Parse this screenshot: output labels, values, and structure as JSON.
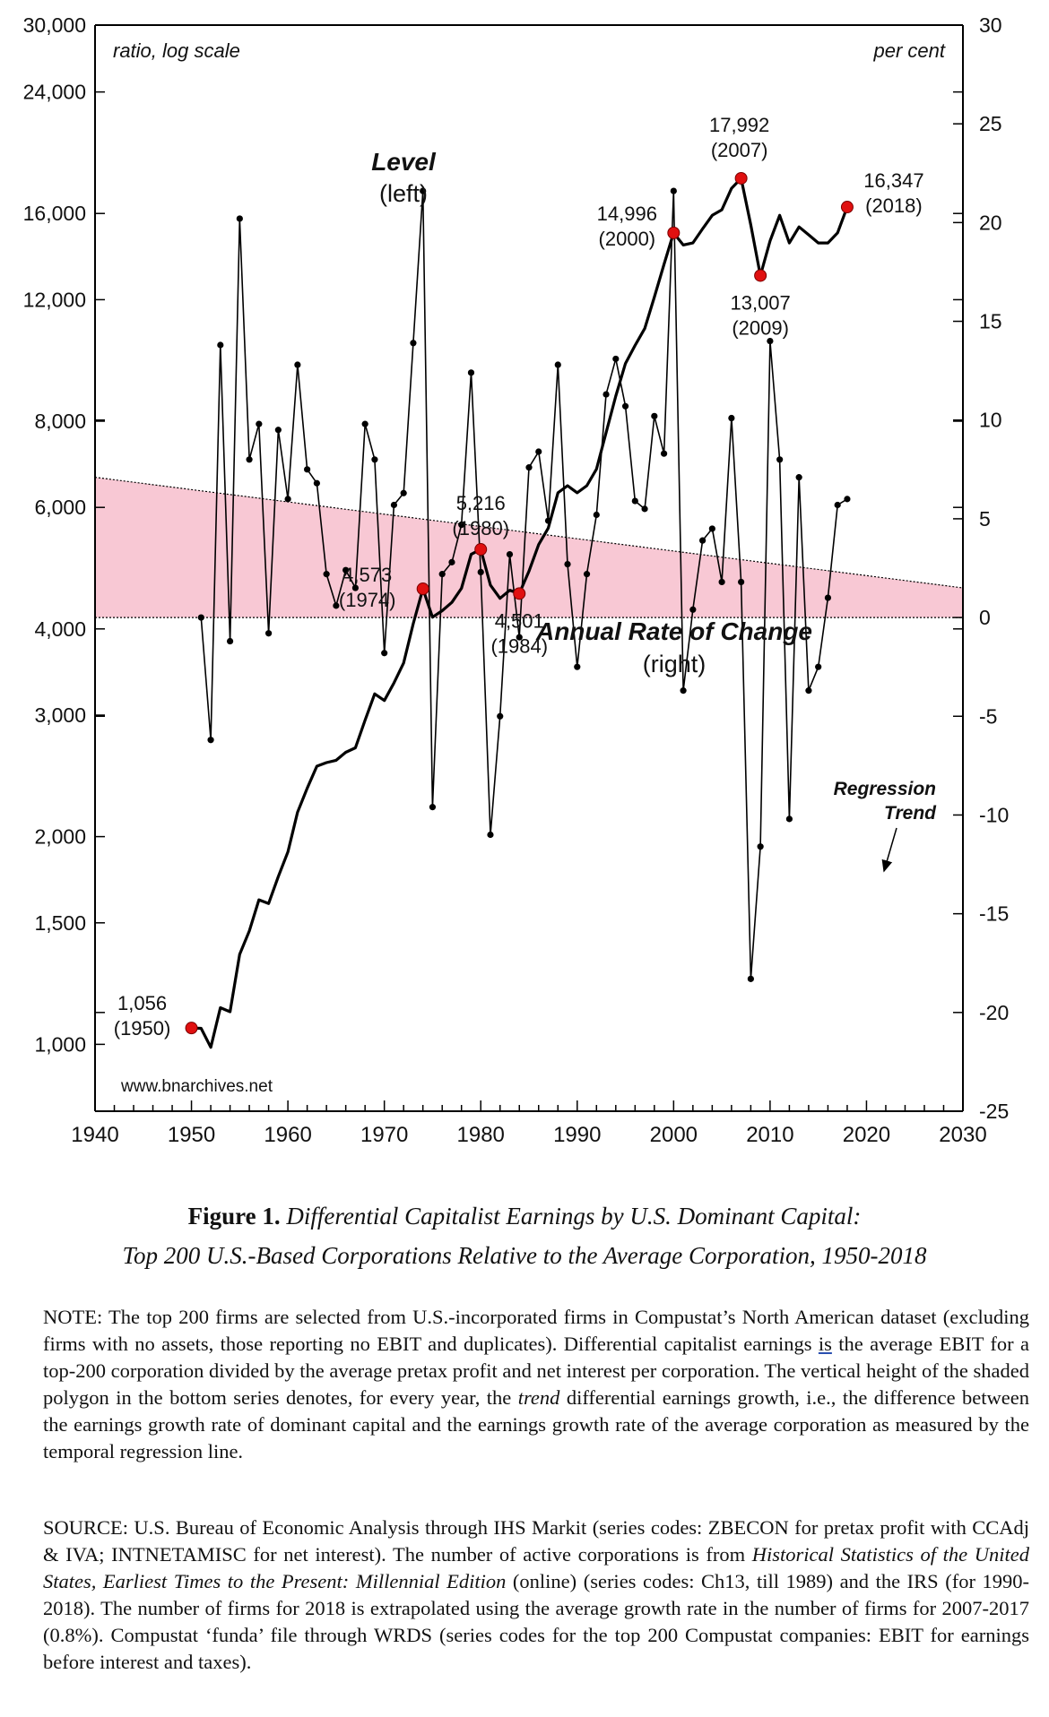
{
  "chart_data": {
    "type": "line",
    "x_ticks": [
      1940,
      1950,
      1960,
      1970,
      1980,
      1990,
      2000,
      2010,
      2020,
      2030
    ],
    "xlim": [
      1940,
      2030
    ],
    "level": {
      "label": "Level",
      "side_label": "(left)",
      "axis_note": "ratio, log scale",
      "scale": "log",
      "ylim": [
        800,
        30000
      ],
      "ticks": [
        1000,
        1500,
        2000,
        3000,
        4000,
        6000,
        8000,
        12000,
        16000,
        24000,
        30000
      ],
      "tick_labels": [
        "1,000",
        "1,500",
        "2,000",
        "3,000",
        "4,000",
        "6,000",
        "8,000",
        "12,000",
        "16,000",
        "24,000",
        "30,000"
      ],
      "x": [
        1950,
        1951,
        1952,
        1953,
        1954,
        1955,
        1956,
        1957,
        1958,
        1959,
        1960,
        1961,
        1962,
        1963,
        1964,
        1965,
        1966,
        1967,
        1968,
        1969,
        1970,
        1971,
        1972,
        1973,
        1974,
        1975,
        1976,
        1977,
        1978,
        1979,
        1980,
        1981,
        1982,
        1983,
        1984,
        1985,
        1986,
        1987,
        1988,
        1989,
        1990,
        1991,
        1992,
        1993,
        1994,
        1995,
        1996,
        1997,
        1998,
        1999,
        2000,
        2001,
        2002,
        2003,
        2004,
        2005,
        2006,
        2007,
        2008,
        2009,
        2010,
        2011,
        2012,
        2013,
        2014,
        2015,
        2016,
        2017,
        2018
      ],
      "y": [
        1056,
        1055,
        990,
        1130,
        1115,
        1350,
        1460,
        1620,
        1600,
        1750,
        1900,
        2170,
        2350,
        2530,
        2560,
        2580,
        2650,
        2690,
        2950,
        3220,
        3150,
        3340,
        3570,
        4070,
        4573,
        4160,
        4250,
        4370,
        4580,
        5130,
        5216,
        4630,
        4430,
        4550,
        4501,
        4850,
        5300,
        5600,
        6300,
        6450,
        6300,
        6450,
        6820,
        7700,
        8700,
        9700,
        10300,
        10900,
        12100,
        13500,
        14996,
        14400,
        14500,
        15200,
        15900,
        16200,
        17400,
        17992,
        15400,
        13007,
        14600,
        15900,
        14500,
        15300,
        14900,
        14500,
        14500,
        15000,
        16347
      ],
      "annotations": [
        {
          "year": 1950,
          "value": 1056,
          "text": "1,056",
          "sub": "(1950)"
        },
        {
          "year": 1974,
          "value": 4573,
          "text": "4,573",
          "sub": "(1974)"
        },
        {
          "year": 1980,
          "value": 5216,
          "text": "5,216",
          "sub": "(1980)"
        },
        {
          "year": 1984,
          "value": 4501,
          "text": "4,501",
          "sub": "(1984)"
        },
        {
          "year": 2000,
          "value": 14996,
          "text": "14,996",
          "sub": "(2000)"
        },
        {
          "year": 2007,
          "value": 17992,
          "text": "17,992",
          "sub": "(2007)"
        },
        {
          "year": 2009,
          "value": 13007,
          "text": "13,007",
          "sub": "(2009)"
        },
        {
          "year": 2018,
          "value": 16347,
          "text": "16,347",
          "sub": "(2018)"
        }
      ]
    },
    "rate": {
      "label": "Annual Rate of Change",
      "side_label": "(right)",
      "axis_note": "per cent",
      "ylim": [
        -25,
        30
      ],
      "ticks": [
        -25,
        -20,
        -15,
        -10,
        -5,
        0,
        5,
        10,
        15,
        20,
        25,
        30
      ],
      "tick_labels": [
        "-25",
        "-20",
        "-15",
        "-10",
        "-5",
        "0",
        "5",
        "10",
        "15",
        "20",
        "25",
        "30"
      ],
      "x": [
        1951,
        1952,
        1953,
        1954,
        1955,
        1956,
        1957,
        1958,
        1959,
        1960,
        1961,
        1962,
        1963,
        1964,
        1965,
        1966,
        1967,
        1968,
        1969,
        1970,
        1971,
        1972,
        1973,
        1974,
        1975,
        1976,
        1977,
        1978,
        1979,
        1980,
        1981,
        1982,
        1983,
        1984,
        1985,
        1986,
        1987,
        1988,
        1989,
        1990,
        1991,
        1992,
        1993,
        1994,
        1995,
        1996,
        1997,
        1998,
        1999,
        2000,
        2001,
        2002,
        2003,
        2004,
        2005,
        2006,
        2007,
        2008,
        2009,
        2010,
        2011,
        2012,
        2013,
        2014,
        2015,
        2016,
        2017,
        2018
      ],
      "y": [
        0,
        -6.2,
        13.8,
        -1.2,
        20.2,
        8,
        9.8,
        -0.8,
        9.5,
        6,
        12.8,
        7.5,
        6.8,
        2.2,
        0.6,
        2.4,
        1.5,
        9.8,
        8,
        -1.8,
        5.7,
        6.3,
        13.9,
        21.6,
        -9.6,
        2.2,
        2.8,
        4.7,
        12.4,
        2.3,
        -11,
        -5,
        3.2,
        -1,
        7.6,
        8.4,
        4.9,
        12.8,
        2.7,
        -2.5,
        2.2,
        5.2,
        11.3,
        13.1,
        10.7,
        5.9,
        5.5,
        10.2,
        8.3,
        21.6,
        -3.7,
        0.4,
        3.9,
        4.5,
        1.8,
        10.1,
        1.8,
        -18.3,
        -11.6,
        14,
        8,
        -10.2,
        7.1,
        -3.7,
        -2.5,
        1,
        5.7,
        6
      ]
    },
    "regression": {
      "label_line1": "Regression",
      "label_line2": "Trend",
      "start": {
        "year": 1940,
        "value": 7.1
      },
      "end": {
        "year": 2030,
        "value": 1.5
      },
      "fill_color": "#f8c8d4"
    },
    "watermark": "www.bnarchives.net",
    "colors": {
      "marker": "#e01010",
      "line": "#000000"
    }
  },
  "caption": {
    "figure_label": "Figure 1.",
    "title_line1": "Differential Capitalist Earnings by U.S. Dominant Capital:",
    "title_line2": "Top 200 U.S.-Based Corporations Relative to the Average Corporation, 1950-2018"
  },
  "note": {
    "p1": "NOTE: The top 200 firms are selected from U.S.-incorporated firms in Compustat’s North American dataset (excluding firms with no assets, those reporting no EBIT and duplicates). Differential capitalist earnings ",
    "is": "is",
    "p2": " the average EBIT for a top-200 corporation divided by the average pretax profit and net interest per corporation. The vertical height of the shaded polygon in the bottom series denotes, for every year, the ",
    "trend": "trend",
    "p3": " differential earnings growth, i.e., the difference between the earnings growth rate of dominant capital and the earnings growth rate of the average corporation as measured by the temporal regression line."
  },
  "source": {
    "p1": "SOURCE: U.S. Bureau of Economic Analysis through IHS Markit (series codes: ZBECON for pretax profit with CCAdj & IVA; INTNETAMISC for net interest). The number of active corporations is from ",
    "book": "Historical Statistics of the United States, Earliest Times to the Present: Millennial Edition",
    "p2": " (online) (series codes: Ch13, till 1989) and the IRS (for 1990-2018). The number of firms for 2018 is extrapolated using the average growth rate in the number of firms for 2007-2017 (0.8%). Compustat ‘funda’ file through WRDS (series codes for the top 200 Compustat companies: EBIT for earnings before interest and taxes)."
  }
}
